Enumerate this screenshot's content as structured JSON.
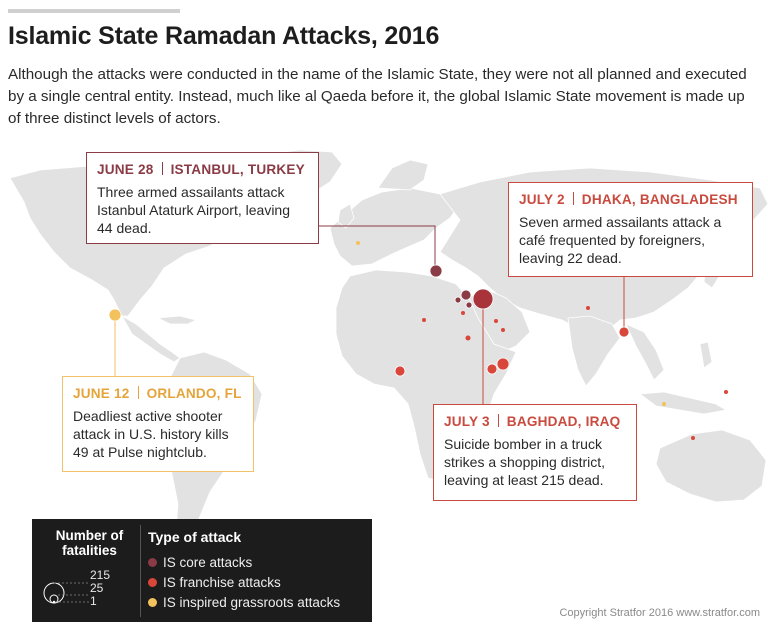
{
  "title": "Islamic State Ramadan Attacks, 2016",
  "subtitle": "Although the attacks were conducted in the name of the Islamic State, they were not all planned and executed by a single central entity. Instead, much like al Qaeda before it, the global Islamic State movement is made up of three distinct levels of actors.",
  "colors": {
    "core": "#8a3b45",
    "franchise": "#d9463a",
    "grassroots": "#f4c25c",
    "land": "#e2e2e2",
    "legend_bg": "#1c1c1c"
  },
  "callouts": {
    "istanbul": {
      "date": "JUNE 28",
      "location": "ISTANBUL, TURKEY",
      "text": "Three armed assailants attack Istanbul Ataturk Airport, leaving 44 dead.",
      "type": "core"
    },
    "dhaka": {
      "date": "JULY 2",
      "location": "DHAKA, BANGLADESH",
      "text": "Seven armed assailants attack a café frequented by foreigners, leaving 22 dead.",
      "type": "franchise"
    },
    "orlando": {
      "date": "JUNE 12",
      "location": "ORLANDO, FL",
      "text": "Deadliest active shooter attack in U.S. history kills 49 at Pulse nightclub.",
      "type": "grassroots"
    },
    "baghdad": {
      "date": "JULY 3",
      "location": "BAGHDAD, IRAQ",
      "text": "Suicide bomber in a truck strikes a shopping district, leaving at least 215 dead.",
      "type": "franchise"
    }
  },
  "legend": {
    "fatalities_title": "Number of fatalities",
    "sizes": [
      "215",
      "25",
      "1"
    ],
    "type_title": "Type of attack",
    "types": [
      "IS core attacks",
      "IS franchise attacks",
      "IS inspired grassroots attacks"
    ]
  },
  "copyright": "Copyright Stratfor 2016   www.stratfor.com"
}
